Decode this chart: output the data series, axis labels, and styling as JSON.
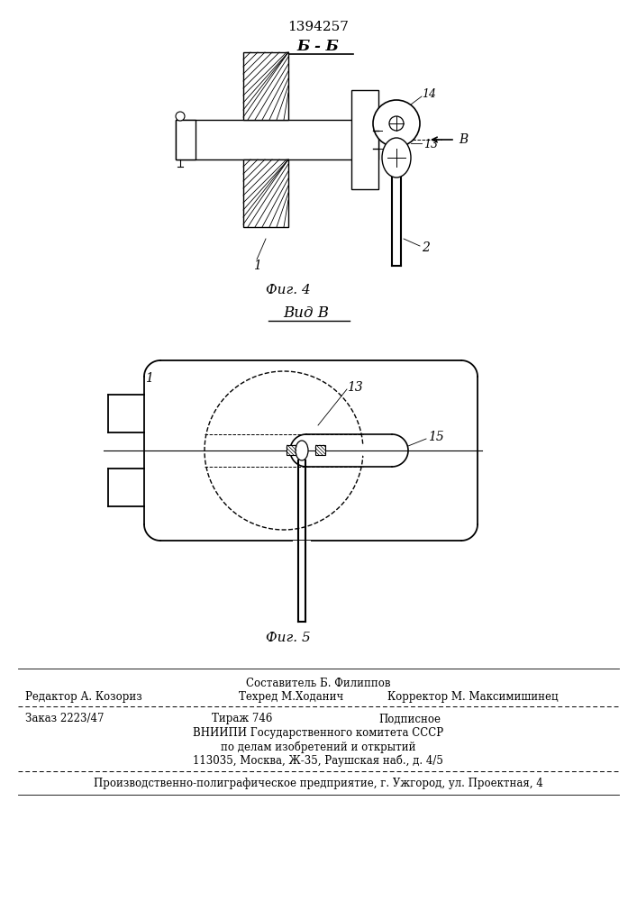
{
  "patent_number": "1394257",
  "fig4_label": "Б - Б",
  "fig4_caption": "Фиг. 4",
  "fig5_label": "Вид В",
  "fig5_caption": "Фиг. 5",
  "arrow_label": "В",
  "footer": {
    "line1_center": "Составитель Б. Филиппов",
    "line2_left": "Редактор А. Козориз",
    "line2_center": "Техред М.Ходанич",
    "line2_right": "Корректор М. Максимишинец",
    "line3_left": "Заказ 2223/47",
    "line3_center": "Тираж 746",
    "line3_right": "Подписное",
    "line4": "ВНИИПИ Государственного комитета СССР",
    "line5": "по делам изобретений и открытий",
    "line6": "113035, Москва, Ж-35, Раушская наб., д. 4/5",
    "line7": "Производственно-полиграфическое предприятие, г. Ужгород, ул. Проектная, 4"
  },
  "bg_color": "#ffffff",
  "line_color": "#000000"
}
